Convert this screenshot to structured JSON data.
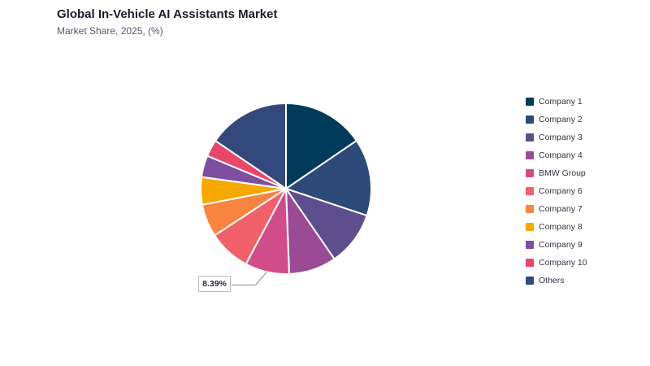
{
  "header": {
    "title": "Global In-Vehicle AI Assistants Market",
    "subtitle": "Market Share, 2025, (%)"
  },
  "chart_data": {
    "type": "pie",
    "title": "Global In-Vehicle AI Assistants Market",
    "subtitle": "Market Share, 2025, (%)",
    "legend_position": "right",
    "slices": [
      {
        "label": "Company 1",
        "value": 15.5,
        "color": "#003b5c"
      },
      {
        "label": "Company 2",
        "value": 14.6,
        "color": "#2d4a78"
      },
      {
        "label": "Company 3",
        "value": 10.3,
        "color": "#5e4e8e"
      },
      {
        "label": "Company 4",
        "value": 9.0,
        "color": "#9b4b95"
      },
      {
        "label": "BMW Group",
        "value": 8.39,
        "color": "#d14d8a"
      },
      {
        "label": "Company 6",
        "value": 8.0,
        "color": "#f2606a"
      },
      {
        "label": "Company 7",
        "value": 6.2,
        "color": "#f7843f"
      },
      {
        "label": "Company 8",
        "value": 5.2,
        "color": "#f7a800"
      },
      {
        "label": "Company 9",
        "value": 4.1,
        "color": "#7d4f9e"
      },
      {
        "label": "Company 10",
        "value": 3.2,
        "color": "#e8466b"
      },
      {
        "label": "Others",
        "value": 15.51,
        "color": "#33497b"
      }
    ],
    "callout": {
      "label": "BMW Group",
      "text": "8.39%"
    }
  }
}
